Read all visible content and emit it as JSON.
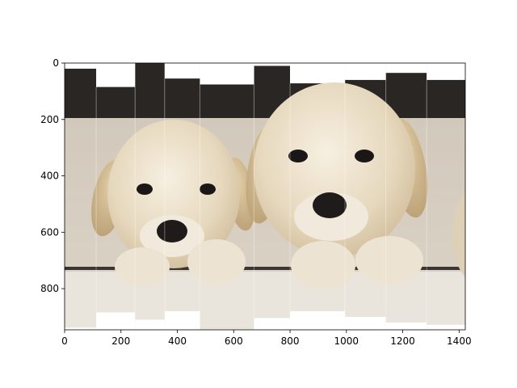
{
  "figure": {
    "background": "#ffffff",
    "image_subject": "two golden retriever puppies resting paws on a ledge"
  },
  "axes": {
    "xlim": [
      0,
      1422
    ],
    "ylim_top": 0,
    "ylim_bottom": 946,
    "x_ticks": [
      0,
      200,
      400,
      600,
      800,
      1000,
      1200,
      1400
    ],
    "y_ticks": [
      0,
      200,
      400,
      600,
      800
    ],
    "x_tick_labels": [
      "0",
      "200",
      "400",
      "600",
      "800",
      "1000",
      "1200",
      "1400"
    ],
    "y_tick_labels": [
      "0",
      "200",
      "400",
      "600",
      "800"
    ]
  },
  "colors": {
    "wall": "#d6cdbf",
    "shelf_dark": "#2a2624",
    "ledge": "#e9e5dc",
    "fur_light": "#efe6d5",
    "fur_mid": "#dccba9",
    "fur_shadow": "#c2ad88",
    "nose": "#1f1b1a",
    "eye": "#1a1716"
  },
  "strips": [
    {
      "x0": 0,
      "x1": 112,
      "top": 20,
      "bottom": 938
    },
    {
      "x0": 112,
      "x1": 250,
      "top": 85,
      "bottom": 884
    },
    {
      "x0": 250,
      "x1": 355,
      "top": 0,
      "bottom": 910
    },
    {
      "x0": 355,
      "x1": 480,
      "top": 55,
      "bottom": 880
    },
    {
      "x0": 480,
      "x1": 672,
      "top": 76,
      "bottom": 944
    },
    {
      "x0": 672,
      "x1": 800,
      "top": 10,
      "bottom": 904
    },
    {
      "x0": 800,
      "x1": 995,
      "top": 72,
      "bottom": 880
    },
    {
      "x0": 995,
      "x1": 1140,
      "top": 60,
      "bottom": 900
    },
    {
      "x0": 1140,
      "x1": 1285,
      "top": 35,
      "bottom": 920
    },
    {
      "x0": 1285,
      "x1": 1422,
      "top": 60,
      "bottom": 928
    }
  ]
}
